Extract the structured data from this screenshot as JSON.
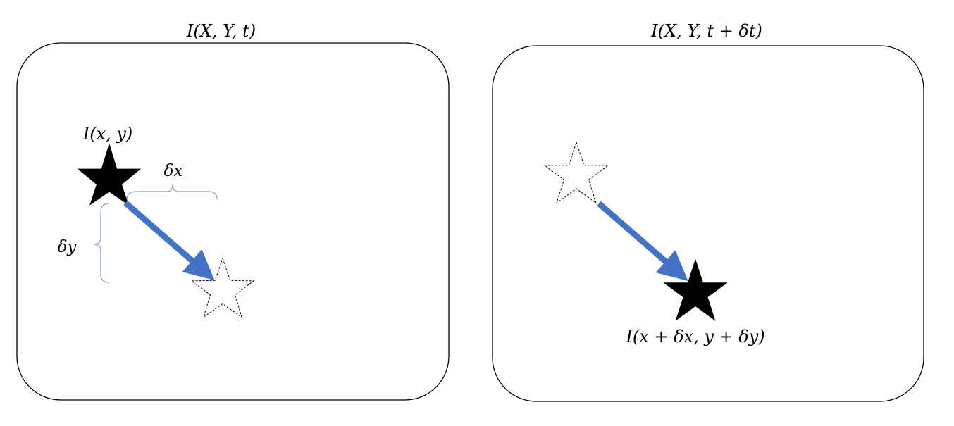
{
  "panels": [
    {
      "title": "I(X, Y, t)",
      "start_label": "I(x, y)",
      "dx_label": "δx",
      "dy_label": "δy"
    },
    {
      "title": "I(X, Y, t + δt)",
      "end_label": "I(x + δx, y + δy)"
    }
  ],
  "colors": {
    "arrow": "#4472C4",
    "brace": "#8FA2C6",
    "star_fill": "#000000",
    "frame": "#000000"
  }
}
